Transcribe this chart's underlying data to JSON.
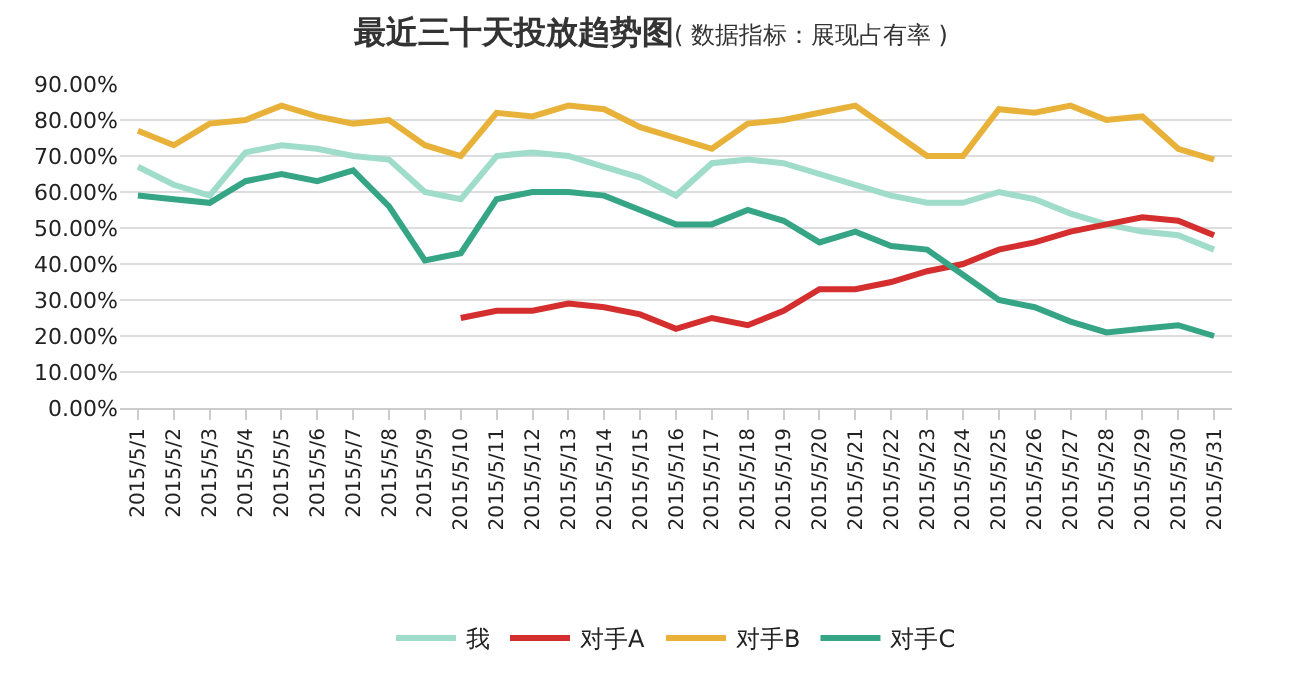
{
  "chart_data": {
    "type": "line",
    "title": "最近三十天投放趋势图",
    "subtitle": "( 数据指标：展现占有率 )",
    "categories": [
      "2015/5/1",
      "2015/5/2",
      "2015/5/3",
      "2015/5/4",
      "2015/5/5",
      "2015/5/6",
      "2015/5/7",
      "2015/5/8",
      "2015/5/9",
      "2015/5/10",
      "2015/5/11",
      "2015/5/12",
      "2015/5/13",
      "2015/5/14",
      "2015/5/15",
      "2015/5/16",
      "2015/5/17",
      "2015/5/18",
      "2015/5/19",
      "2015/5/20",
      "2015/5/21",
      "2015/5/22",
      "2015/5/23",
      "2015/5/24",
      "2015/5/25",
      "2015/5/26",
      "2015/5/27",
      "2015/5/28",
      "2015/5/29",
      "2015/5/30",
      "2015/5/31"
    ],
    "series": [
      {
        "name": "我",
        "color": "#9fdcc9",
        "values": [
          67,
          62,
          59,
          71,
          73,
          72,
          70,
          69,
          60,
          58,
          70,
          71,
          70,
          67,
          64,
          59,
          68,
          69,
          68,
          65,
          62,
          59,
          57,
          57,
          60,
          58,
          54,
          51,
          49,
          48,
          44
        ]
      },
      {
        "name": "对手A",
        "color": "#d42e2e",
        "values": [
          null,
          null,
          null,
          null,
          null,
          null,
          null,
          null,
          null,
          25,
          27,
          27,
          29,
          28,
          26,
          22,
          25,
          23,
          27,
          33,
          33,
          35,
          38,
          40,
          44,
          46,
          49,
          51,
          53,
          52,
          48
        ]
      },
      {
        "name": "对手B",
        "color": "#e8b23a",
        "values": [
          77,
          73,
          79,
          80,
          84,
          81,
          79,
          80,
          73,
          70,
          82,
          81,
          84,
          83,
          78,
          75,
          72,
          79,
          80,
          82,
          84,
          77,
          70,
          70,
          83,
          82,
          84,
          80,
          81,
          72,
          69
        ]
      },
      {
        "name": "对手C",
        "color": "#35a585",
        "values": [
          59,
          58,
          57,
          63,
          65,
          63,
          66,
          56,
          41,
          43,
          58,
          60,
          60,
          59,
          55,
          51,
          51,
          55,
          52,
          46,
          49,
          45,
          44,
          37,
          30,
          28,
          24,
          21,
          22,
          23,
          20
        ]
      }
    ],
    "ylim": [
      0,
      90
    ],
    "yticks": [
      {
        "value": 0,
        "label": "0.00%"
      },
      {
        "value": 10,
        "label": "10.00%"
      },
      {
        "value": 20,
        "label": "20.00%"
      },
      {
        "value": 30,
        "label": "30.00%"
      },
      {
        "value": 40,
        "label": "40.00%"
      },
      {
        "value": 50,
        "label": "50.00%"
      },
      {
        "value": 60,
        "label": "60.00%"
      },
      {
        "value": 70,
        "label": "70.00%"
      },
      {
        "value": 80,
        "label": "80.00%"
      },
      {
        "value": 90,
        "label": "90.00%"
      }
    ],
    "grid": "y",
    "legend": "bottom",
    "marker": "none",
    "line_style": "solid"
  }
}
